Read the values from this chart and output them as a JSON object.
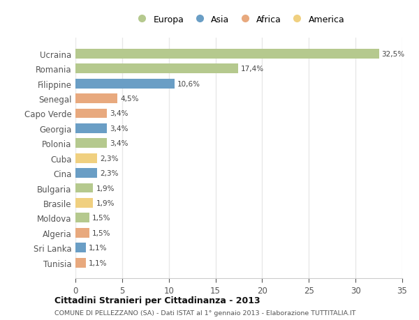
{
  "countries": [
    "Ucraina",
    "Romania",
    "Filippine",
    "Senegal",
    "Capo Verde",
    "Georgia",
    "Polonia",
    "Cuba",
    "Cina",
    "Bulgaria",
    "Brasile",
    "Moldova",
    "Algeria",
    "Sri Lanka",
    "Tunisia"
  ],
  "values": [
    32.5,
    17.4,
    10.6,
    4.5,
    3.4,
    3.4,
    3.4,
    2.3,
    2.3,
    1.9,
    1.9,
    1.5,
    1.5,
    1.1,
    1.1
  ],
  "labels": [
    "32,5%",
    "17,4%",
    "10,6%",
    "4,5%",
    "3,4%",
    "3,4%",
    "3,4%",
    "2,3%",
    "2,3%",
    "1,9%",
    "1,9%",
    "1,5%",
    "1,5%",
    "1,1%",
    "1,1%"
  ],
  "colors": [
    "#b5c98e",
    "#b5c98e",
    "#6a9ec5",
    "#e8a97e",
    "#e8a97e",
    "#6a9ec5",
    "#b5c98e",
    "#f0d080",
    "#6a9ec5",
    "#b5c98e",
    "#f0d080",
    "#b5c98e",
    "#e8a97e",
    "#6a9ec5",
    "#e8a97e"
  ],
  "legend_labels": [
    "Europa",
    "Asia",
    "Africa",
    "America"
  ],
  "legend_colors": [
    "#b5c98e",
    "#6a9ec5",
    "#e8a97e",
    "#f0d080"
  ],
  "title": "Cittadini Stranieri per Cittadinanza - 2013",
  "subtitle": "COMUNE DI PELLEZZANO (SA) - Dati ISTAT al 1° gennaio 2013 - Elaborazione TUTTITALIA.IT",
  "xlim": [
    0,
    35
  ],
  "xticks": [
    0,
    5,
    10,
    15,
    20,
    25,
    30,
    35
  ],
  "background_color": "#ffffff",
  "grid_color": "#e8e8e8",
  "bar_height": 0.65
}
